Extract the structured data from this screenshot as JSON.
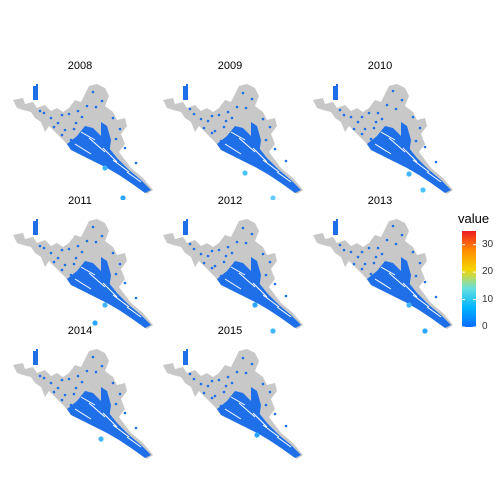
{
  "panels": [
    {
      "label": "2008",
      "hot": [
        [
          100,
          90,
          "#3fb4ff"
        ],
        [
          118,
          120,
          "#2aa6ff"
        ]
      ]
    },
    {
      "label": "2009",
      "hot": [
        [
          118,
          120,
          "#66ccff"
        ],
        [
          140,
          134,
          "#3bd6ff"
        ],
        [
          90,
          95,
          "#49c4ff"
        ],
        [
          150,
          148,
          "#2aa6ff"
        ]
      ]
    },
    {
      "label": "2010",
      "hot": [
        [
          118,
          112,
          "#49c4ff"
        ],
        [
          104,
          96,
          "#3fb4ff"
        ]
      ]
    },
    {
      "label": "2011",
      "hot": [
        [
          100,
          92,
          "#3fb4ff"
        ],
        [
          90,
          110,
          "#2aa6ff"
        ]
      ]
    },
    {
      "label": "2012",
      "hot": [
        [
          118,
          118,
          "#3fb4ff"
        ],
        [
          100,
          92,
          "#2aa6ff"
        ]
      ]
    },
    {
      "label": "2013",
      "hot": [
        [
          104,
          92,
          "#3fb4ff"
        ],
        [
          120,
          118,
          "#2aa6ff"
        ]
      ]
    },
    {
      "label": "2014",
      "hot": [
        [
          96,
          96,
          "#3fb4ff"
        ]
      ]
    },
    {
      "label": "2015",
      "hot": [
        [
          102,
          92,
          "#2aa6ff"
        ]
      ]
    }
  ],
  "legend": {
    "title": "value",
    "ticks": [
      30,
      20,
      10,
      0
    ],
    "range": [
      0,
      35
    ],
    "colors": [
      "#0a6cff",
      "#00b4ff",
      "#66e0e0",
      "#f6d400",
      "#ff8c00",
      "#ee1c25"
    ]
  },
  "colors": {
    "land": "#c8c8c8",
    "base": "#1f6fe8"
  }
}
